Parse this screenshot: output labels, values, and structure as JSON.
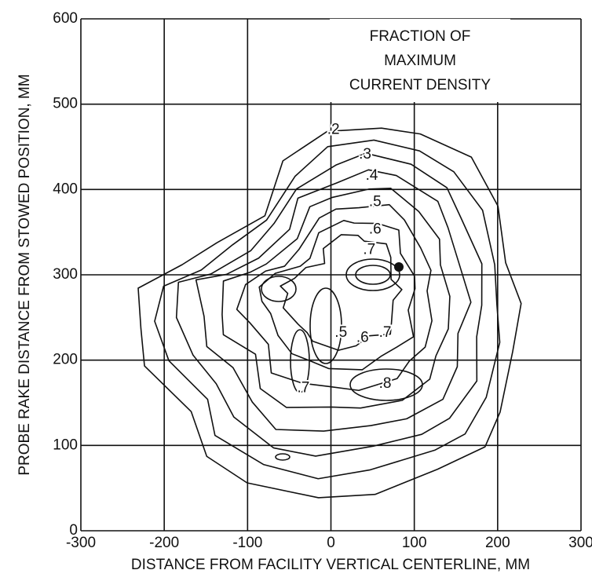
{
  "chart_data": {
    "type": "contour",
    "xlabel": "DISTANCE FROM FACILITY VERTICAL CENTERLINE, MM",
    "ylabel": "PROBE RAKE DISTANCE FROM STOWED POSITION, MM",
    "legend_title": [
      "FRACTION OF",
      "MAXIMUM",
      "CURRENT DENSITY"
    ],
    "xlim": [
      -300,
      300
    ],
    "xticks": [
      -300,
      -200,
      -100,
      0,
      100,
      200,
      300
    ],
    "ylim": [
      0,
      600
    ],
    "yticks": [
      0,
      100,
      200,
      300,
      400,
      500,
      600
    ],
    "grid": true,
    "contour_labels": [
      {
        "text": ".2",
        "x": 3,
        "y": 470
      },
      {
        "text": ".3",
        "x": 41,
        "y": 441
      },
      {
        "text": ".4",
        "x": 49,
        "y": 416
      },
      {
        "text": ".5",
        "x": 53,
        "y": 385
      },
      {
        "text": ".6",
        "x": 53,
        "y": 353
      },
      {
        "text": ".7",
        "x": 46,
        "y": 329
      },
      {
        "text": ".5",
        "x": 12,
        "y": 232
      },
      {
        "text": ".6",
        "x": 38,
        "y": 226
      },
      {
        "text": ".7",
        "x": 65,
        "y": 232
      },
      {
        "text": ".7",
        "x": -33,
        "y": 167
      },
      {
        "text": ".8",
        "x": 65,
        "y": 172
      }
    ]
  }
}
